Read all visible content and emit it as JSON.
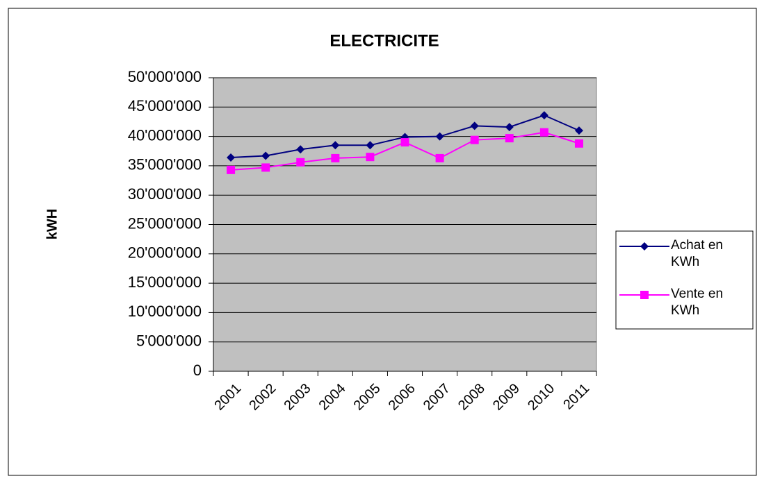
{
  "chart_data": {
    "type": "line",
    "title": "ELECTRICITE",
    "y_label": "kWH",
    "categories": [
      "2001",
      "2002",
      "2003",
      "2004",
      "2005",
      "2006",
      "2007",
      "2008",
      "2009",
      "2010",
      "2011"
    ],
    "series": [
      {
        "name": "Achat en KWh",
        "color": "#000080",
        "marker": "diamond",
        "values": [
          36400000,
          36700000,
          37800000,
          38500000,
          38500000,
          39900000,
          40000000,
          41800000,
          41600000,
          43600000,
          41000000
        ]
      },
      {
        "name": "Vente en KWh",
        "color": "#ff00ff",
        "marker": "square",
        "values": [
          34300000,
          34700000,
          35600000,
          36300000,
          36500000,
          39000000,
          36300000,
          39400000,
          39700000,
          40700000,
          38800000
        ]
      }
    ],
    "ylim": [
      0,
      50000000
    ],
    "yticks": [
      0,
      {
        "value": 5000000,
        "label": "5'000'000"
      },
      {
        "value": 10000000,
        "label": "10'000'000"
      },
      {
        "value": 15000000,
        "label": "15'000'000"
      },
      {
        "value": 20000000,
        "label": "20'000'000"
      },
      {
        "value": 25000000,
        "label": "25'000'000"
      },
      {
        "value": 30000000,
        "label": "30'000'000"
      },
      {
        "value": 35000000,
        "label": "35'000'000"
      },
      {
        "value": 40000000,
        "label": "40'000'000"
      },
      {
        "value": 45000000,
        "label": "45'000'000"
      },
      {
        "value": 50000000,
        "label": "50'000'000"
      }
    ],
    "grid": true,
    "legend": "right",
    "plot_background": "#c0c0c0"
  }
}
